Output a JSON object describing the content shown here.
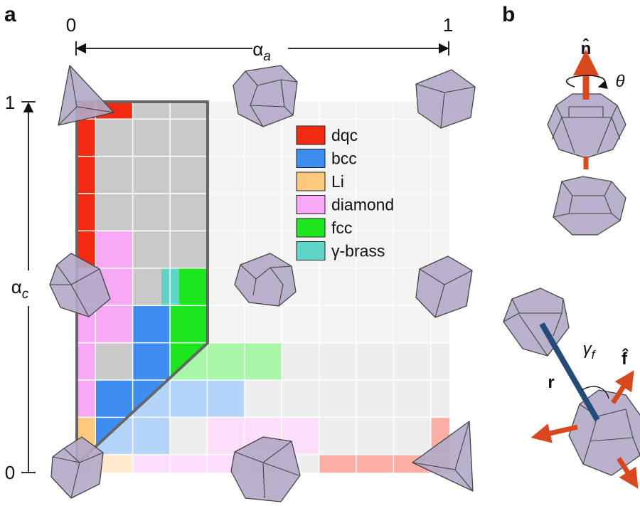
{
  "panel_a": {
    "label": "a",
    "x_axis": {
      "min": "0",
      "max": "1",
      "symbol": "α",
      "subscript": "a"
    },
    "y_axis": {
      "min": "0",
      "max": "1",
      "symbol": "α",
      "subscript": "c"
    },
    "legend": [
      {
        "name": "dqc",
        "color": "#f22a12"
      },
      {
        "name": "bcc",
        "color": "#3d8ef0"
      },
      {
        "name": "Li",
        "color": "#fcc97d"
      },
      {
        "name": "diamond",
        "color": "#f7a8f5"
      },
      {
        "name": "fcc",
        "color": "#1ee61e"
      },
      {
        "name": "γ-brass",
        "color": "#5fd5c8"
      }
    ]
  },
  "panel_b": {
    "label": "b",
    "axis_symbol": "n̂",
    "angle_symbol": "θ",
    "bond_symbol": "γ",
    "bond_subscript": "f",
    "force_symbol": "f̂",
    "distance_symbol": "r"
  }
}
